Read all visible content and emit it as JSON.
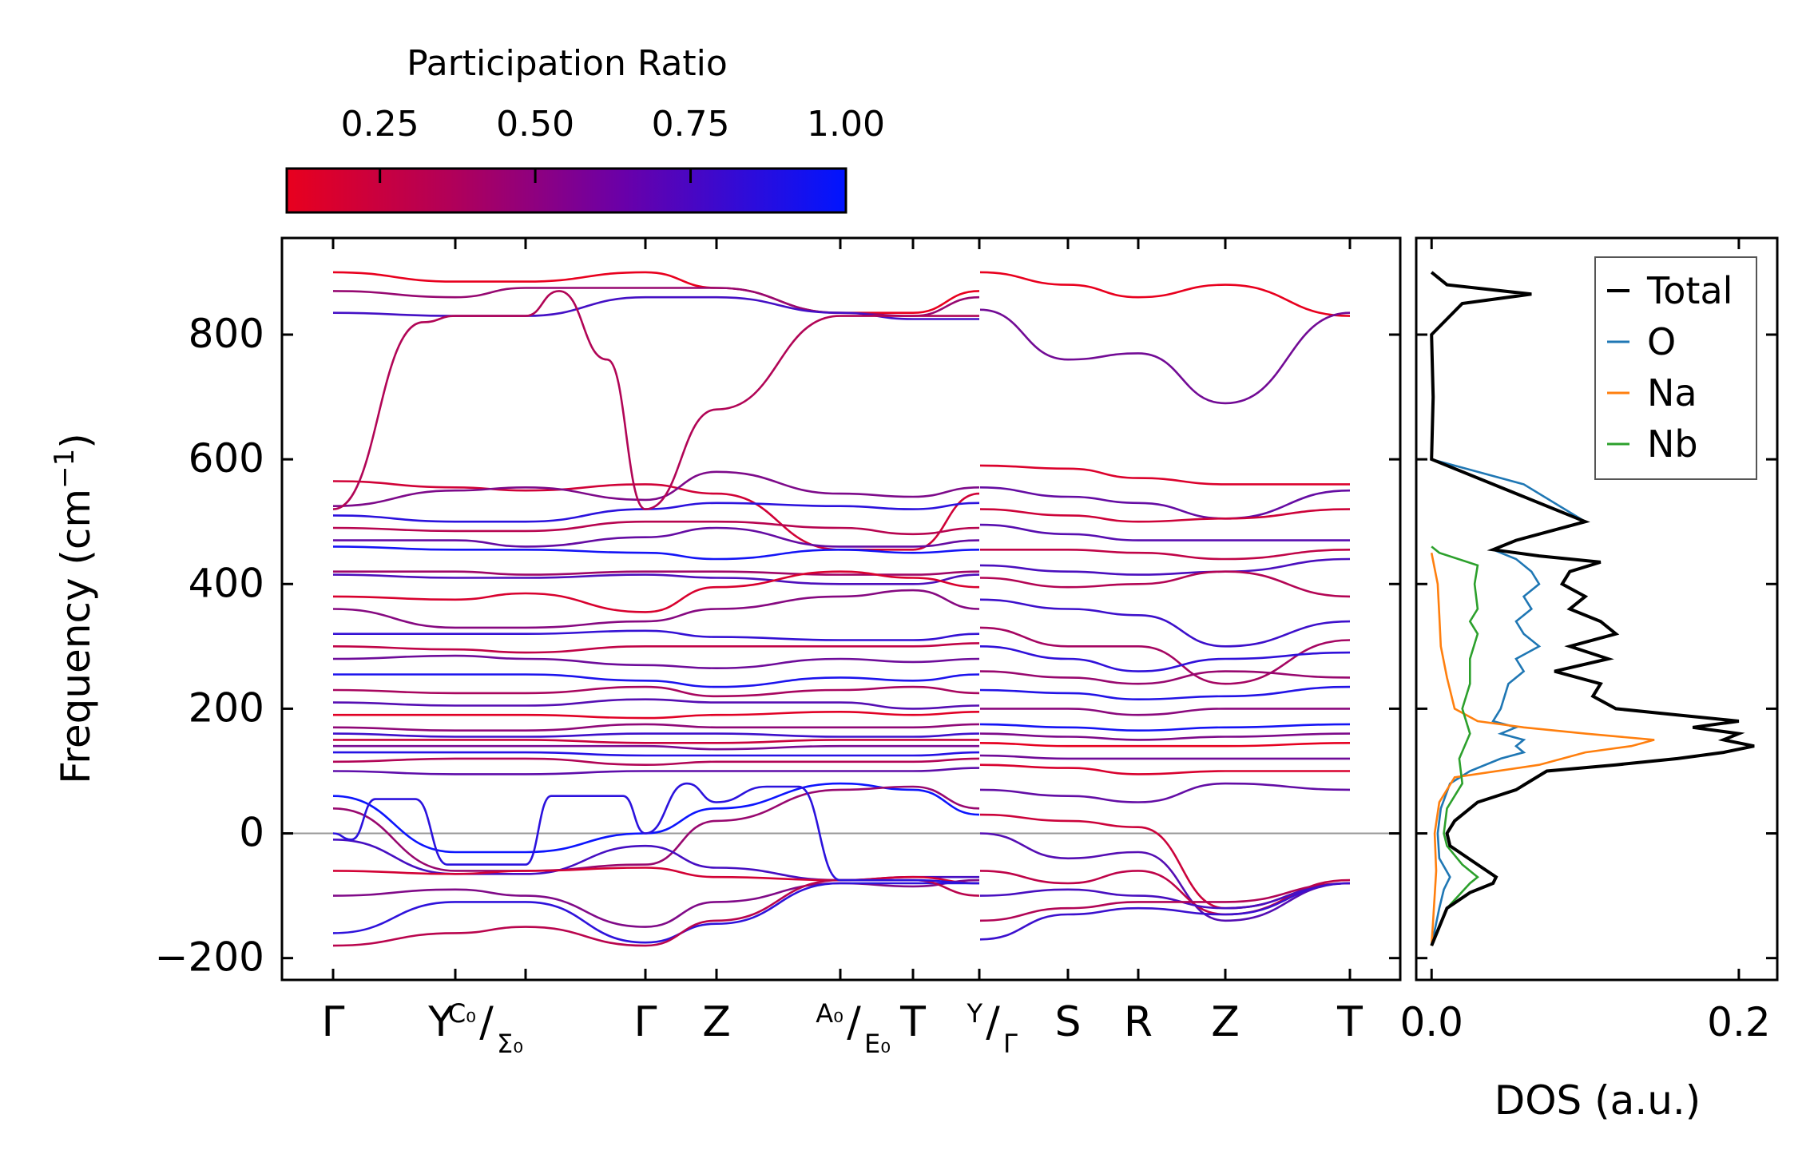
{
  "colorbar": {
    "title": "Participation Ratio",
    "ticks": [
      "0.25",
      "0.50",
      "0.75",
      "1.00"
    ],
    "tick_values": [
      0.25,
      0.5,
      0.75,
      1.0
    ],
    "range": [
      0.1,
      1.0
    ],
    "color_low": "#e8001e",
    "color_high": "#0015ff"
  },
  "chart_data": [
    {
      "type": "line",
      "name": "phonon-band-structure",
      "ylabel_main": "Frequency (cm",
      "ylabel_sup": "−1",
      "ylabel_close": ")",
      "ylim": [
        -235,
        955
      ],
      "yticks": [
        -200,
        0,
        200,
        400,
        600,
        800
      ],
      "ytick_labels": [
        "−200",
        "0",
        "200",
        "400",
        "600",
        "800"
      ],
      "segments": [
        {
          "labels": [
            {
              "main": "Γ"
            },
            {
              "main": "Y",
              "sup": "C₀",
              "slash": "/",
              "sub": "Σ₀"
            },
            {
              "main": "Γ"
            },
            {
              "main": "Z"
            },
            {
              "sup": "A₀",
              "slash": "/",
              "sub": "E₀"
            },
            {
              "main": "T"
            },
            {
              "sup": "Y",
              "slash": "/",
              "sub": "Γ"
            }
          ]
        },
        {
          "labels": [
            {
              "main": "S"
            },
            {
              "main": "R"
            },
            {
              "main": "Z"
            },
            {
              "main": "T"
            }
          ]
        }
      ]
    },
    {
      "type": "line",
      "name": "density-of-states",
      "xlabel": "DOS (a.u.)",
      "xticks": [
        0.0,
        0.2
      ],
      "xtick_labels": [
        "0.0",
        "0.2"
      ],
      "xlim": [
        -0.01,
        0.225
      ],
      "ylim": [
        -235,
        955
      ],
      "legend": {
        "position": "top-right"
      },
      "series": [
        {
          "name": "Total",
          "color": "#000000",
          "x": [
            -180,
            -120,
            -95,
            -80,
            -70,
            -50,
            -20,
            0,
            20,
            50,
            70,
            100,
            110,
            120,
            130,
            140,
            150,
            160,
            170,
            180,
            190,
            200,
            220,
            240,
            260,
            280,
            300,
            320,
            340,
            360,
            380,
            400,
            420,
            435,
            445,
            455,
            470,
            500,
            600,
            700,
            800,
            850,
            865,
            880,
            900
          ],
          "y": [
            0.0,
            0.01,
            0.025,
            0.04,
            0.042,
            0.03,
            0.012,
            0.01,
            0.015,
            0.03,
            0.055,
            0.075,
            0.12,
            0.16,
            0.19,
            0.21,
            0.19,
            0.2,
            0.17,
            0.2,
            0.16,
            0.12,
            0.105,
            0.11,
            0.08,
            0.115,
            0.09,
            0.12,
            0.11,
            0.09,
            0.1,
            0.085,
            0.09,
            0.11,
            0.07,
            0.04,
            0.055,
            0.1,
            0.0,
            0.001,
            0.0,
            0.02,
            0.065,
            0.01,
            0.0
          ]
        },
        {
          "name": "O",
          "color": "#1f77b4",
          "x": [
            -180,
            -120,
            -90,
            -70,
            -40,
            0,
            40,
            80,
            100,
            120,
            130,
            140,
            150,
            160,
            170,
            180,
            200,
            240,
            260,
            280,
            300,
            320,
            340,
            360,
            380,
            400,
            420,
            440,
            455,
            470,
            500,
            560,
            580,
            600,
            700,
            800,
            850,
            865,
            880,
            900
          ],
          "y": [
            0.0,
            0.005,
            0.008,
            0.012,
            0.005,
            0.004,
            0.006,
            0.012,
            0.025,
            0.045,
            0.06,
            0.055,
            0.06,
            0.045,
            0.055,
            0.04,
            0.045,
            0.05,
            0.06,
            0.055,
            0.07,
            0.06,
            0.055,
            0.065,
            0.06,
            0.07,
            0.065,
            0.055,
            0.04,
            0.055,
            0.1,
            0.06,
            0.03,
            0.0,
            0.001,
            0.0,
            0.02,
            0.065,
            0.01,
            0.0
          ]
        },
        {
          "name": "Na",
          "color": "#ff7f0e",
          "x": [
            -180,
            -100,
            -60,
            0,
            50,
            90,
            110,
            130,
            140,
            150,
            160,
            170,
            180,
            200,
            250,
            300,
            350,
            400,
            450
          ],
          "y": [
            0.0,
            0.002,
            0.003,
            0.002,
            0.005,
            0.015,
            0.07,
            0.1,
            0.13,
            0.145,
            0.1,
            0.06,
            0.03,
            0.015,
            0.01,
            0.006,
            0.005,
            0.004,
            0.0
          ]
        },
        {
          "name": "Nb",
          "color": "#2ca02c",
          "x": [
            -180,
            -120,
            -80,
            -70,
            -50,
            -20,
            0,
            40,
            80,
            120,
            160,
            200,
            240,
            280,
            320,
            340,
            360,
            400,
            430,
            450,
            460
          ],
          "y": [
            0.0,
            0.01,
            0.025,
            0.03,
            0.02,
            0.01,
            0.008,
            0.01,
            0.02,
            0.018,
            0.025,
            0.02,
            0.025,
            0.025,
            0.03,
            0.025,
            0.03,
            0.028,
            0.03,
            0.005,
            0.0
          ]
        }
      ]
    }
  ]
}
